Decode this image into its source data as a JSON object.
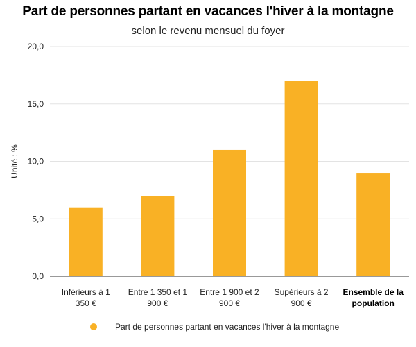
{
  "chart_data": {
    "type": "bar",
    "title": "Part de personnes partant en vacances l'hiver à la montagne",
    "subtitle": "selon le revenu mensuel du foyer",
    "ylabel": "Unité : %",
    "xlabel": "",
    "ylim": [
      0,
      20
    ],
    "yticks": [
      "0,0",
      "5,0",
      "10,0",
      "15,0",
      "20,0"
    ],
    "ytick_values": [
      0,
      5,
      10,
      15,
      20
    ],
    "categories": [
      [
        "Inférieurs à 1",
        "350 €"
      ],
      [
        "Entre 1 350 et 1",
        "900 €"
      ],
      [
        "Entre 1 900 et 2",
        "900 €"
      ],
      [
        "Supérieurs à 2",
        "900 €"
      ],
      [
        "Ensemble de la",
        "population"
      ]
    ],
    "category_bold": [
      false,
      false,
      false,
      false,
      true
    ],
    "series": [
      {
        "name": "Part de personnes partant en vacances l'hiver à la montagne",
        "values": [
          6,
          7,
          11,
          17,
          9
        ],
        "color": "#F9B125"
      }
    ],
    "grid": true,
    "legend_position": "bottom"
  }
}
